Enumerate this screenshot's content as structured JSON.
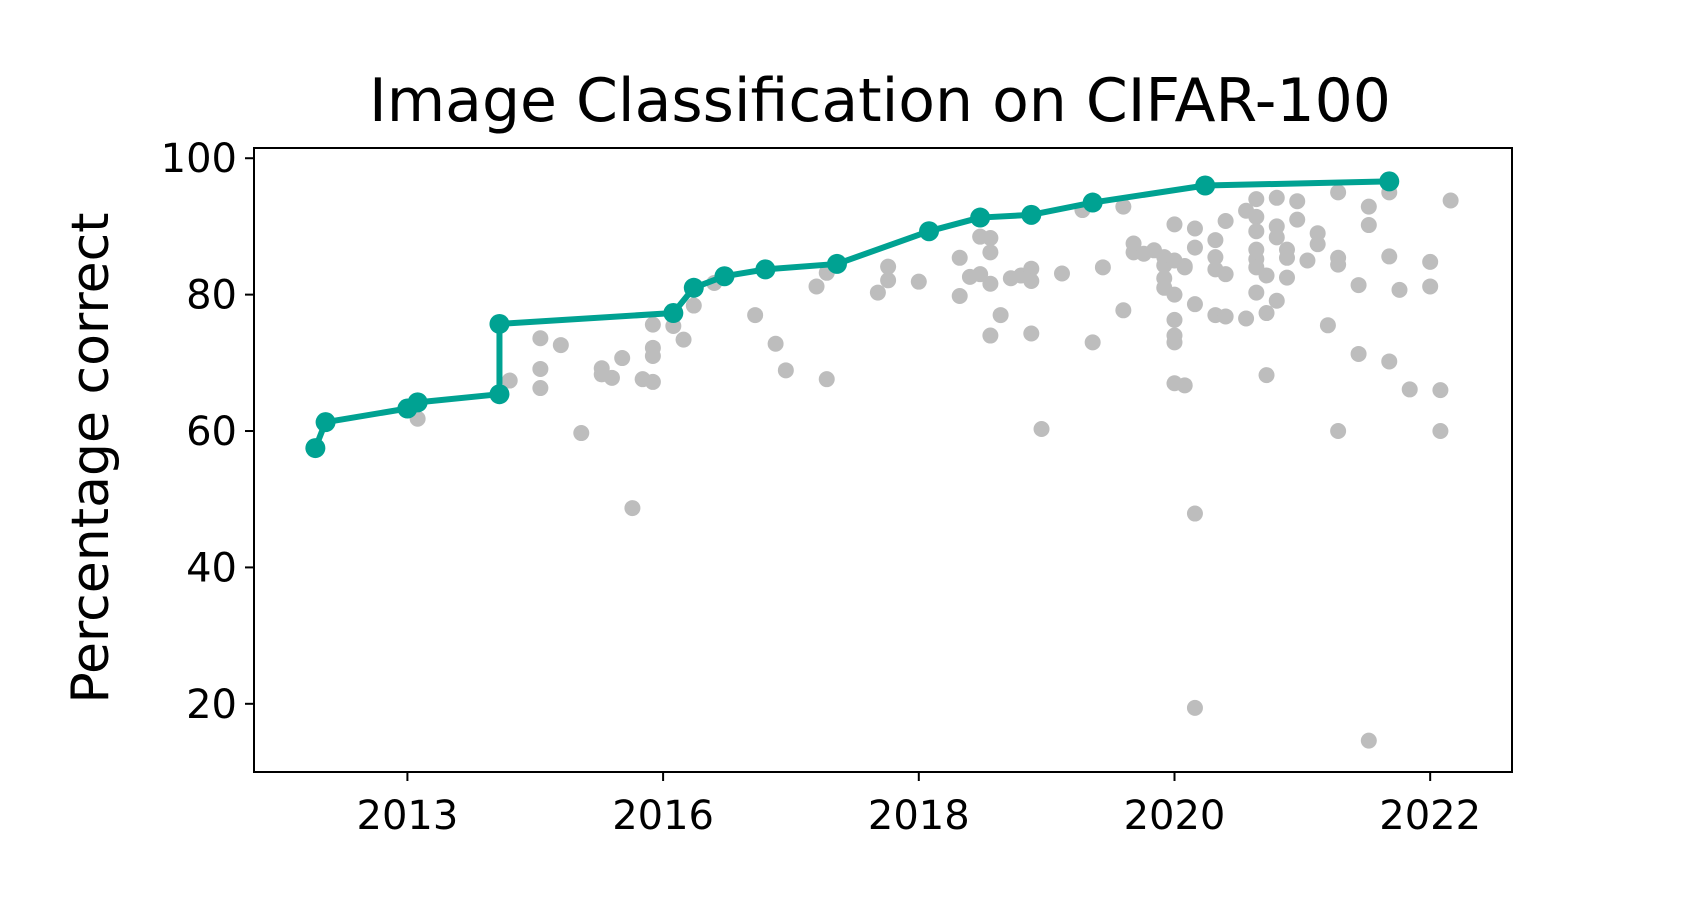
{
  "chart_data": {
    "type": "scatter",
    "title": "Image Classification on CIFAR-100",
    "xlabel": "",
    "ylabel": "Percentage correct",
    "xlim": [
      2011.1,
      2023.4
    ],
    "ylim": [
      10,
      101.5
    ],
    "xticks": [
      {
        "value": 2012.6,
        "label": "2013"
      },
      {
        "value": 2015.1,
        "label": "2016"
      },
      {
        "value": 2017.6,
        "label": "2018"
      },
      {
        "value": 2020.1,
        "label": "2020"
      },
      {
        "value": 2022.6,
        "label": "2022"
      }
    ],
    "yticks": [
      20,
      40,
      60,
      80,
      100
    ],
    "grid": false,
    "colors": {
      "frontier": "#00a292",
      "scatter": "#bdbdbd"
    },
    "series": [
      {
        "type": "scatter",
        "points": [
          [
            2012.7,
            61.8
          ],
          [
            2013.6,
            67.4
          ],
          [
            2013.9,
            73.6
          ],
          [
            2013.9,
            69.1
          ],
          [
            2013.9,
            66.3
          ],
          [
            2014.1,
            72.6
          ],
          [
            2014.3,
            59.7
          ],
          [
            2014.5,
            69.2
          ],
          [
            2014.5,
            68.3
          ],
          [
            2014.6,
            67.8
          ],
          [
            2014.7,
            70.7
          ],
          [
            2014.8,
            48.7
          ],
          [
            2014.9,
            67.6
          ],
          [
            2015.0,
            67.2
          ],
          [
            2015.0,
            71.0
          ],
          [
            2015.0,
            72.2
          ],
          [
            2015.0,
            75.6
          ],
          [
            2015.2,
            75.4
          ],
          [
            2015.3,
            73.4
          ],
          [
            2015.4,
            78.4
          ],
          [
            2015.6,
            81.7
          ],
          [
            2016.0,
            77.0
          ],
          [
            2016.2,
            72.8
          ],
          [
            2016.3,
            68.9
          ],
          [
            2016.6,
            81.2
          ],
          [
            2016.7,
            83.2
          ],
          [
            2016.7,
            67.6
          ],
          [
            2017.2,
            80.3
          ],
          [
            2017.3,
            84.1
          ],
          [
            2017.3,
            82.1
          ],
          [
            2017.6,
            81.9
          ],
          [
            2018.0,
            79.8
          ],
          [
            2018.0,
            85.4
          ],
          [
            2018.1,
            82.6
          ],
          [
            2018.2,
            83.0
          ],
          [
            2018.3,
            81.6
          ],
          [
            2018.2,
            88.5
          ],
          [
            2018.3,
            88.3
          ],
          [
            2018.3,
            86.2
          ],
          [
            2018.3,
            74.0
          ],
          [
            2018.4,
            77.0
          ],
          [
            2018.5,
            82.4
          ],
          [
            2018.6,
            82.8
          ],
          [
            2018.7,
            83.8
          ],
          [
            2018.7,
            82.0
          ],
          [
            2018.7,
            74.3
          ],
          [
            2018.8,
            60.3
          ],
          [
            2019.0,
            83.1
          ],
          [
            2019.2,
            92.4
          ],
          [
            2019.3,
            73.0
          ],
          [
            2019.4,
            84.0
          ],
          [
            2019.6,
            92.9
          ],
          [
            2019.6,
            77.7
          ],
          [
            2019.7,
            86.2
          ],
          [
            2019.7,
            87.5
          ],
          [
            2019.8,
            86.0
          ],
          [
            2019.9,
            86.5
          ],
          [
            2020.0,
            85.5
          ],
          [
            2020.0,
            84.3
          ],
          [
            2020.1,
            90.3
          ],
          [
            2020.1,
            85.0
          ],
          [
            2020.2,
            84.0
          ],
          [
            2020.0,
            82.4
          ],
          [
            2020.0,
            81.0
          ],
          [
            2020.1,
            80.0
          ],
          [
            2020.1,
            73.0
          ],
          [
            2020.1,
            74.0
          ],
          [
            2020.1,
            76.3
          ],
          [
            2020.1,
            67.0
          ],
          [
            2020.2,
            84.2
          ],
          [
            2020.2,
            66.7
          ],
          [
            2020.3,
            89.7
          ],
          [
            2020.3,
            86.9
          ],
          [
            2020.3,
            78.6
          ],
          [
            2020.3,
            47.9
          ],
          [
            2020.3,
            19.4
          ],
          [
            2020.5,
            88.0
          ],
          [
            2020.5,
            85.5
          ],
          [
            2020.5,
            83.7
          ],
          [
            2020.5,
            77.0
          ],
          [
            2020.6,
            90.8
          ],
          [
            2020.6,
            83.0
          ],
          [
            2020.6,
            76.8
          ],
          [
            2020.8,
            76.5
          ],
          [
            2020.8,
            92.3
          ],
          [
            2020.9,
            94.0
          ],
          [
            2020.9,
            91.4
          ],
          [
            2020.9,
            89.3
          ],
          [
            2020.9,
            86.6
          ],
          [
            2020.9,
            85.2
          ],
          [
            2020.9,
            84.0
          ],
          [
            2020.9,
            80.3
          ],
          [
            2021.0,
            82.8
          ],
          [
            2021.0,
            77.3
          ],
          [
            2021.0,
            68.2
          ],
          [
            2021.1,
            94.2
          ],
          [
            2021.1,
            90.0
          ],
          [
            2021.1,
            88.4
          ],
          [
            2021.1,
            79.1
          ],
          [
            2021.2,
            86.6
          ],
          [
            2021.2,
            85.4
          ],
          [
            2021.2,
            82.5
          ],
          [
            2021.3,
            93.7
          ],
          [
            2021.3,
            91.0
          ],
          [
            2021.4,
            85.0
          ],
          [
            2021.5,
            89.0
          ],
          [
            2021.5,
            87.4
          ],
          [
            2021.6,
            75.5
          ],
          [
            2021.7,
            95.0
          ],
          [
            2021.7,
            85.4
          ],
          [
            2021.7,
            84.4
          ],
          [
            2021.7,
            60.0
          ],
          [
            2021.9,
            71.3
          ],
          [
            2021.9,
            81.4
          ],
          [
            2022.0,
            92.9
          ],
          [
            2022.0,
            90.2
          ],
          [
            2022.0,
            14.6
          ],
          [
            2022.2,
            95.0
          ],
          [
            2022.2,
            85.6
          ],
          [
            2022.2,
            70.2
          ],
          [
            2022.3,
            80.7
          ],
          [
            2022.4,
            66.1
          ],
          [
            2022.6,
            84.8
          ],
          [
            2022.6,
            81.2
          ],
          [
            2022.8,
            93.8
          ],
          [
            2022.7,
            66.0
          ],
          [
            2022.7,
            60.0
          ]
        ]
      },
      {
        "type": "line",
        "points": [
          [
            2011.7,
            57.5
          ],
          [
            2011.8,
            61.3
          ],
          [
            2012.6,
            63.3
          ],
          [
            2012.7,
            64.2
          ],
          [
            2013.5,
            65.4
          ],
          [
            2013.5,
            75.7
          ],
          [
            2015.2,
            77.3
          ],
          [
            2015.4,
            81.0
          ],
          [
            2015.7,
            82.7
          ],
          [
            2016.1,
            83.7
          ],
          [
            2016.8,
            84.5
          ],
          [
            2017.7,
            89.3
          ],
          [
            2018.2,
            91.3
          ],
          [
            2018.7,
            91.7
          ],
          [
            2019.3,
            93.5
          ],
          [
            2020.4,
            96.0
          ],
          [
            2022.2,
            96.6
          ]
        ]
      }
    ]
  }
}
